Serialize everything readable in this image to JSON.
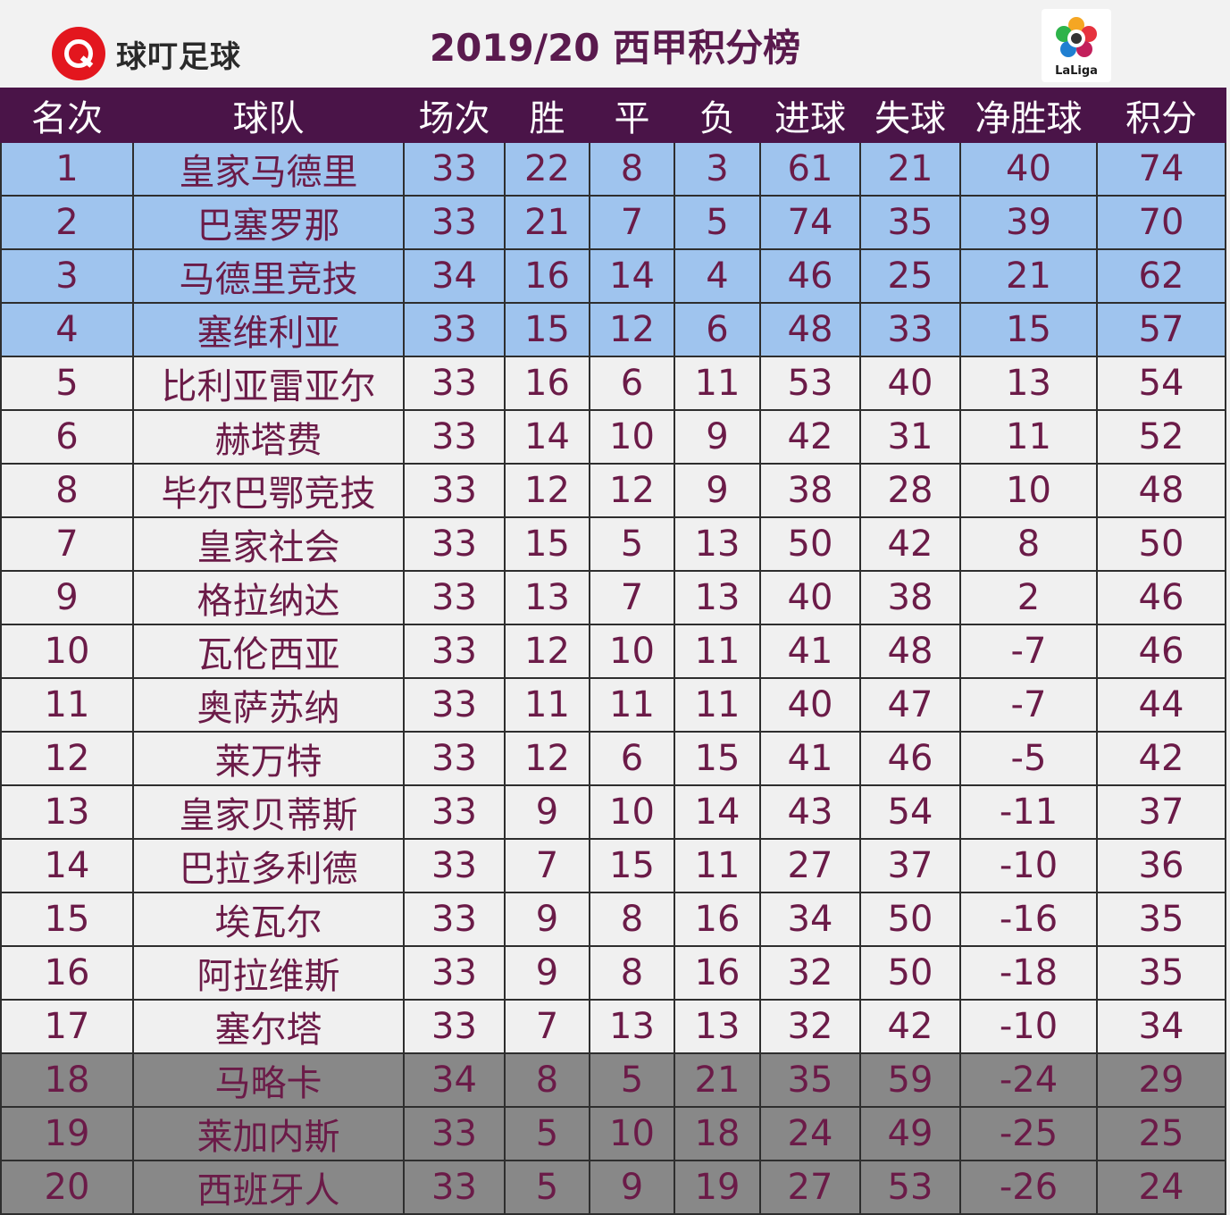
{
  "header": {
    "brand": "球叮足球",
    "title": "2019/20 西甲积分榜",
    "league_logo_text": "LaLiga"
  },
  "colors": {
    "header_row": "#4a1448",
    "champions_zone": "#9fc4ee",
    "relegation_zone": "#888888",
    "text": "#6b1b48"
  },
  "table": {
    "columns": [
      "名次",
      "球队",
      "场次",
      "胜",
      "平",
      "负",
      "进球",
      "失球",
      "净胜球",
      "积分"
    ],
    "rows": [
      [
        "1",
        "皇家马德里",
        "33",
        "22",
        "8",
        "3",
        "61",
        "21",
        "40",
        "74"
      ],
      [
        "2",
        "巴塞罗那",
        "33",
        "21",
        "7",
        "5",
        "74",
        "35",
        "39",
        "70"
      ],
      [
        "3",
        "马德里竞技",
        "34",
        "16",
        "14",
        "4",
        "46",
        "25",
        "21",
        "62"
      ],
      [
        "4",
        "塞维利亚",
        "33",
        "15",
        "12",
        "6",
        "48",
        "33",
        "15",
        "57"
      ],
      [
        "5",
        "比利亚雷亚尔",
        "33",
        "16",
        "6",
        "11",
        "53",
        "40",
        "13",
        "54"
      ],
      [
        "6",
        "赫塔费",
        "33",
        "14",
        "10",
        "9",
        "42",
        "31",
        "11",
        "52"
      ],
      [
        "8",
        "毕尔巴鄂竞技",
        "33",
        "12",
        "12",
        "9",
        "38",
        "28",
        "10",
        "48"
      ],
      [
        "7",
        "皇家社会",
        "33",
        "15",
        "5",
        "13",
        "50",
        "42",
        "8",
        "50"
      ],
      [
        "9",
        "格拉纳达",
        "33",
        "13",
        "7",
        "13",
        "40",
        "38",
        "2",
        "46"
      ],
      [
        "10",
        "瓦伦西亚",
        "33",
        "12",
        "10",
        "11",
        "41",
        "48",
        "-7",
        "46"
      ],
      [
        "11",
        "奥萨苏纳",
        "33",
        "11",
        "11",
        "11",
        "40",
        "47",
        "-7",
        "44"
      ],
      [
        "12",
        "莱万特",
        "33",
        "12",
        "6",
        "15",
        "41",
        "46",
        "-5",
        "42"
      ],
      [
        "13",
        "皇家贝蒂斯",
        "33",
        "9",
        "10",
        "14",
        "43",
        "54",
        "-11",
        "37"
      ],
      [
        "14",
        "巴拉多利德",
        "33",
        "7",
        "15",
        "11",
        "27",
        "37",
        "-10",
        "36"
      ],
      [
        "15",
        "埃瓦尔",
        "33",
        "9",
        "8",
        "16",
        "34",
        "50",
        "-16",
        "35"
      ],
      [
        "16",
        "阿拉维斯",
        "33",
        "9",
        "8",
        "16",
        "32",
        "50",
        "-18",
        "35"
      ],
      [
        "17",
        "塞尔塔",
        "33",
        "7",
        "13",
        "13",
        "32",
        "42",
        "-10",
        "34"
      ],
      [
        "18",
        "马略卡",
        "34",
        "8",
        "5",
        "21",
        "35",
        "59",
        "-24",
        "29"
      ],
      [
        "19",
        "莱加内斯",
        "33",
        "5",
        "10",
        "18",
        "24",
        "49",
        "-25",
        "25"
      ],
      [
        "20",
        "西班牙人",
        "33",
        "5",
        "9",
        "19",
        "27",
        "53",
        "-26",
        "24"
      ]
    ],
    "row_zones": [
      "ucl",
      "ucl",
      "ucl",
      "ucl",
      "mid",
      "mid",
      "mid",
      "mid",
      "mid",
      "mid",
      "mid",
      "mid",
      "mid",
      "mid",
      "mid",
      "mid",
      "mid",
      "rel",
      "rel",
      "rel"
    ]
  }
}
